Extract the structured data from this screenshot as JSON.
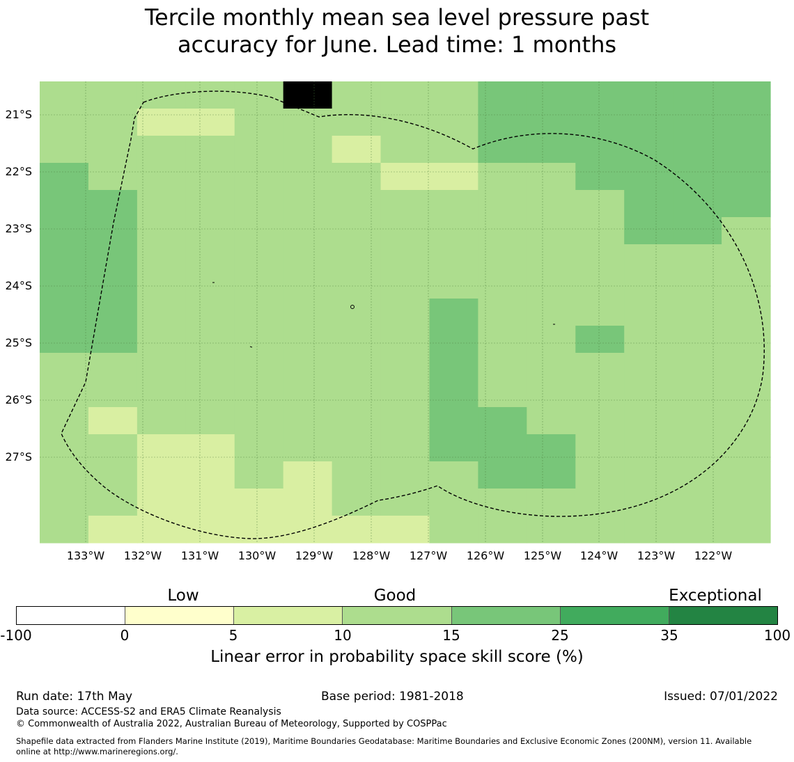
{
  "title": {
    "line1": "Tercile monthly mean sea level pressure past",
    "line2": "accuracy for June. Lead time: 1 months"
  },
  "map": {
    "lat_labels": [
      "21°S",
      "22°S",
      "23°S",
      "24°S",
      "25°S",
      "26°S",
      "27°S"
    ],
    "lon_labels": [
      "133°W",
      "132°W",
      "131°W",
      "130°W",
      "129°W",
      "128°W",
      "127°W",
      "126°W",
      "125°W",
      "124°W",
      "123°W",
      "122°W"
    ],
    "grid_lines": true,
    "boundary_style": "dashed",
    "colors": {
      "c1": "#d9efa2",
      "c2": "#addd8e",
      "c3": "#78c679"
    },
    "skill_grid": [
      "222225222333333",
      "221122222333333",
      "222222122333333",
      "322222211223333",
      "332222222222333",
      "332222222222332",
      "332222222222222",
      "332222222222222",
      "332222223222222",
      "332222223223222",
      "222222223222222",
      "222222223222222",
      "212222223322222",
      "221122223332222",
      "221121222332222",
      "221111222222222",
      "211111112222222"
    ]
  },
  "colorbar": {
    "categories": [
      "Low",
      "Good",
      "Exceptional"
    ],
    "ticks": [
      "-100",
      "0",
      "5",
      "10",
      "15",
      "25",
      "35",
      "100"
    ],
    "colors": [
      "#ffffff",
      "#ffffcc",
      "#d9f0a3",
      "#addd8e",
      "#78c679",
      "#41ab5d",
      "#238443"
    ],
    "label": "Linear error in probability space skill score (%)"
  },
  "footer": {
    "run_date": "Run date: 17th May",
    "base_period": "Base period: 1981-2018",
    "issued": "Issued: 07/01/2022",
    "data_source": "Data source: ACCESS-S2 and ERA5 Climate Reanalysis",
    "copyright": "© Commonwealth of Australia 2022, Australian Bureau of Meteorology, Supported by COSPPac",
    "shapefile_line1": "Shapefile data extracted from Flanders Marine Institute (2019), Maritime Boundaries Geodatabase: Maritime Boundaries and Exclusive Economic Zones (200NM), version 11. Available",
    "shapefile_line2": "online at http://www.marineregions.org/."
  }
}
